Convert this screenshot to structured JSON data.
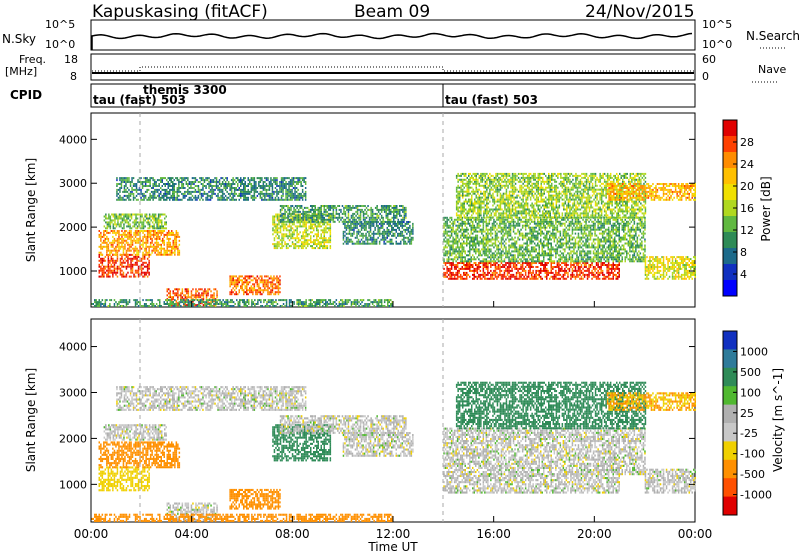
{
  "header": {
    "station": "Kapuskasing (fitACF)",
    "beam": "Beam 09",
    "date": "24/Nov/2015"
  },
  "noise_panel": {
    "left_label": "N.Sky",
    "right_label": "N.Search",
    "left_ticks": [
      "10^5",
      "10^0"
    ],
    "right_ticks": [
      "10^5",
      "10^0"
    ]
  },
  "freq_panel": {
    "left_label_line1": "Freq.",
    "left_label_line2": "[MHz]",
    "right_label": "Nave",
    "left_ticks": [
      "18",
      "8"
    ],
    "right_ticks": [
      "60",
      "0"
    ]
  },
  "cpid_panel": {
    "label": "CPID",
    "modes": [
      "tau (fast) 503",
      "themis 3300",
      "tau (fast) 503"
    ]
  },
  "power_panel": {
    "ylabel": "Slant Range [km]",
    "colorbar_label": "Power [dB]",
    "colorbar_ticks": [
      "28",
      "24",
      "20",
      "16",
      "12",
      "8",
      "4"
    ],
    "colorbar_colors": [
      "#e00000",
      "#ff4000",
      "#ff8c00",
      "#ffc000",
      "#f0e000",
      "#b0d820",
      "#60b840",
      "#2e8b57",
      "#1c6a8a",
      "#1030c0",
      "#0000ff"
    ]
  },
  "velocity_panel": {
    "ylabel": "Slant Range [km]",
    "colorbar_label": "Velocity [m s^-1]",
    "colorbar_ticks": [
      "1000",
      "500",
      "100",
      "25",
      "-25",
      "-100",
      "-500",
      "-1000"
    ],
    "colorbar_colors": [
      "#1030c0",
      "#2e7b9a",
      "#2e8b57",
      "#50b830",
      "#b0b0b0",
      "#c8c8c8",
      "#f0d000",
      "#ff9000",
      "#ff5000",
      "#e00000"
    ]
  },
  "xaxis": {
    "label": "Time UT",
    "ticks": [
      "00:00",
      "04:00",
      "08:00",
      "12:00",
      "16:00",
      "20:00",
      "00:00"
    ]
  },
  "chart_data": {
    "type": "heatmap",
    "title": "Kapuskasing (fitACF) Beam 09 24/Nov/2015",
    "xlabel": "Time UT",
    "ylabel": "Slant Range [km]",
    "xlim_hours": [
      0,
      24
    ],
    "ylim_km": [
      180,
      4600
    ],
    "yticks_km": [
      1000,
      2000,
      3000,
      4000
    ],
    "xticks": [
      "00:00",
      "04:00",
      "08:00",
      "12:00",
      "16:00",
      "20:00",
      "00:00"
    ],
    "cpid_segments": [
      {
        "start_hour": 0,
        "end_hour": 14,
        "mode": "tau (fast) 503"
      },
      {
        "start_hour": 2,
        "end_hour": 14,
        "mode": "themis 3300"
      },
      {
        "start_hour": 14,
        "end_hour": 24,
        "mode": "tau (fast) 503"
      }
    ],
    "power_scale_db": [
      0,
      30
    ],
    "velocity_scale_ms": [
      -1000,
      1000
    ],
    "echo_regions": [
      {
        "t0": 0.3,
        "t1": 2.3,
        "r0": 850,
        "r1": 1350,
        "power": 27,
        "velocity": -60
      },
      {
        "t0": 0.3,
        "t1": 3.5,
        "r0": 1350,
        "r1": 1900,
        "power": 22,
        "velocity": -350
      },
      {
        "t0": 0.5,
        "t1": 3.0,
        "r0": 1950,
        "r1": 2300,
        "power": 13,
        "velocity": 0
      },
      {
        "t0": 1.0,
        "t1": 8.5,
        "r0": 2600,
        "r1": 3100,
        "power": 9,
        "velocity": 0
      },
      {
        "t0": 3.0,
        "t1": 5.0,
        "r0": 200,
        "r1": 600,
        "power": 25,
        "velocity": 0
      },
      {
        "t0": 5.5,
        "t1": 7.5,
        "r0": 450,
        "r1": 900,
        "power": 24,
        "velocity": -300
      },
      {
        "t0": 7.2,
        "t1": 9.5,
        "r0": 1500,
        "r1": 2300,
        "power": 16,
        "velocity": 200
      },
      {
        "t0": 7.5,
        "t1": 12.5,
        "r0": 2100,
        "r1": 2500,
        "power": 10,
        "velocity": 0
      },
      {
        "t0": 10.0,
        "t1": 12.8,
        "r0": 1600,
        "r1": 2100,
        "power": 9,
        "velocity": 0
      },
      {
        "t0": 14.0,
        "t1": 21.0,
        "r0": 800,
        "r1": 1200,
        "power": 27,
        "velocity": 0
      },
      {
        "t0": 14.0,
        "t1": 22.0,
        "r0": 1200,
        "r1": 2200,
        "power": 12,
        "velocity": 0
      },
      {
        "t0": 14.5,
        "t1": 22.0,
        "r0": 2200,
        "r1": 3200,
        "power": 14,
        "velocity": 150
      },
      {
        "t0": 20.5,
        "t1": 24.0,
        "r0": 2600,
        "r1": 3000,
        "power": 21,
        "velocity": -100
      },
      {
        "t0": 22.0,
        "t1": 24.0,
        "r0": 800,
        "r1": 1300,
        "power": 17,
        "velocity": 0
      },
      {
        "t0": 0.0,
        "t1": 12.0,
        "r0": 180,
        "r1": 350,
        "power": 10,
        "velocity": -400
      }
    ]
  }
}
